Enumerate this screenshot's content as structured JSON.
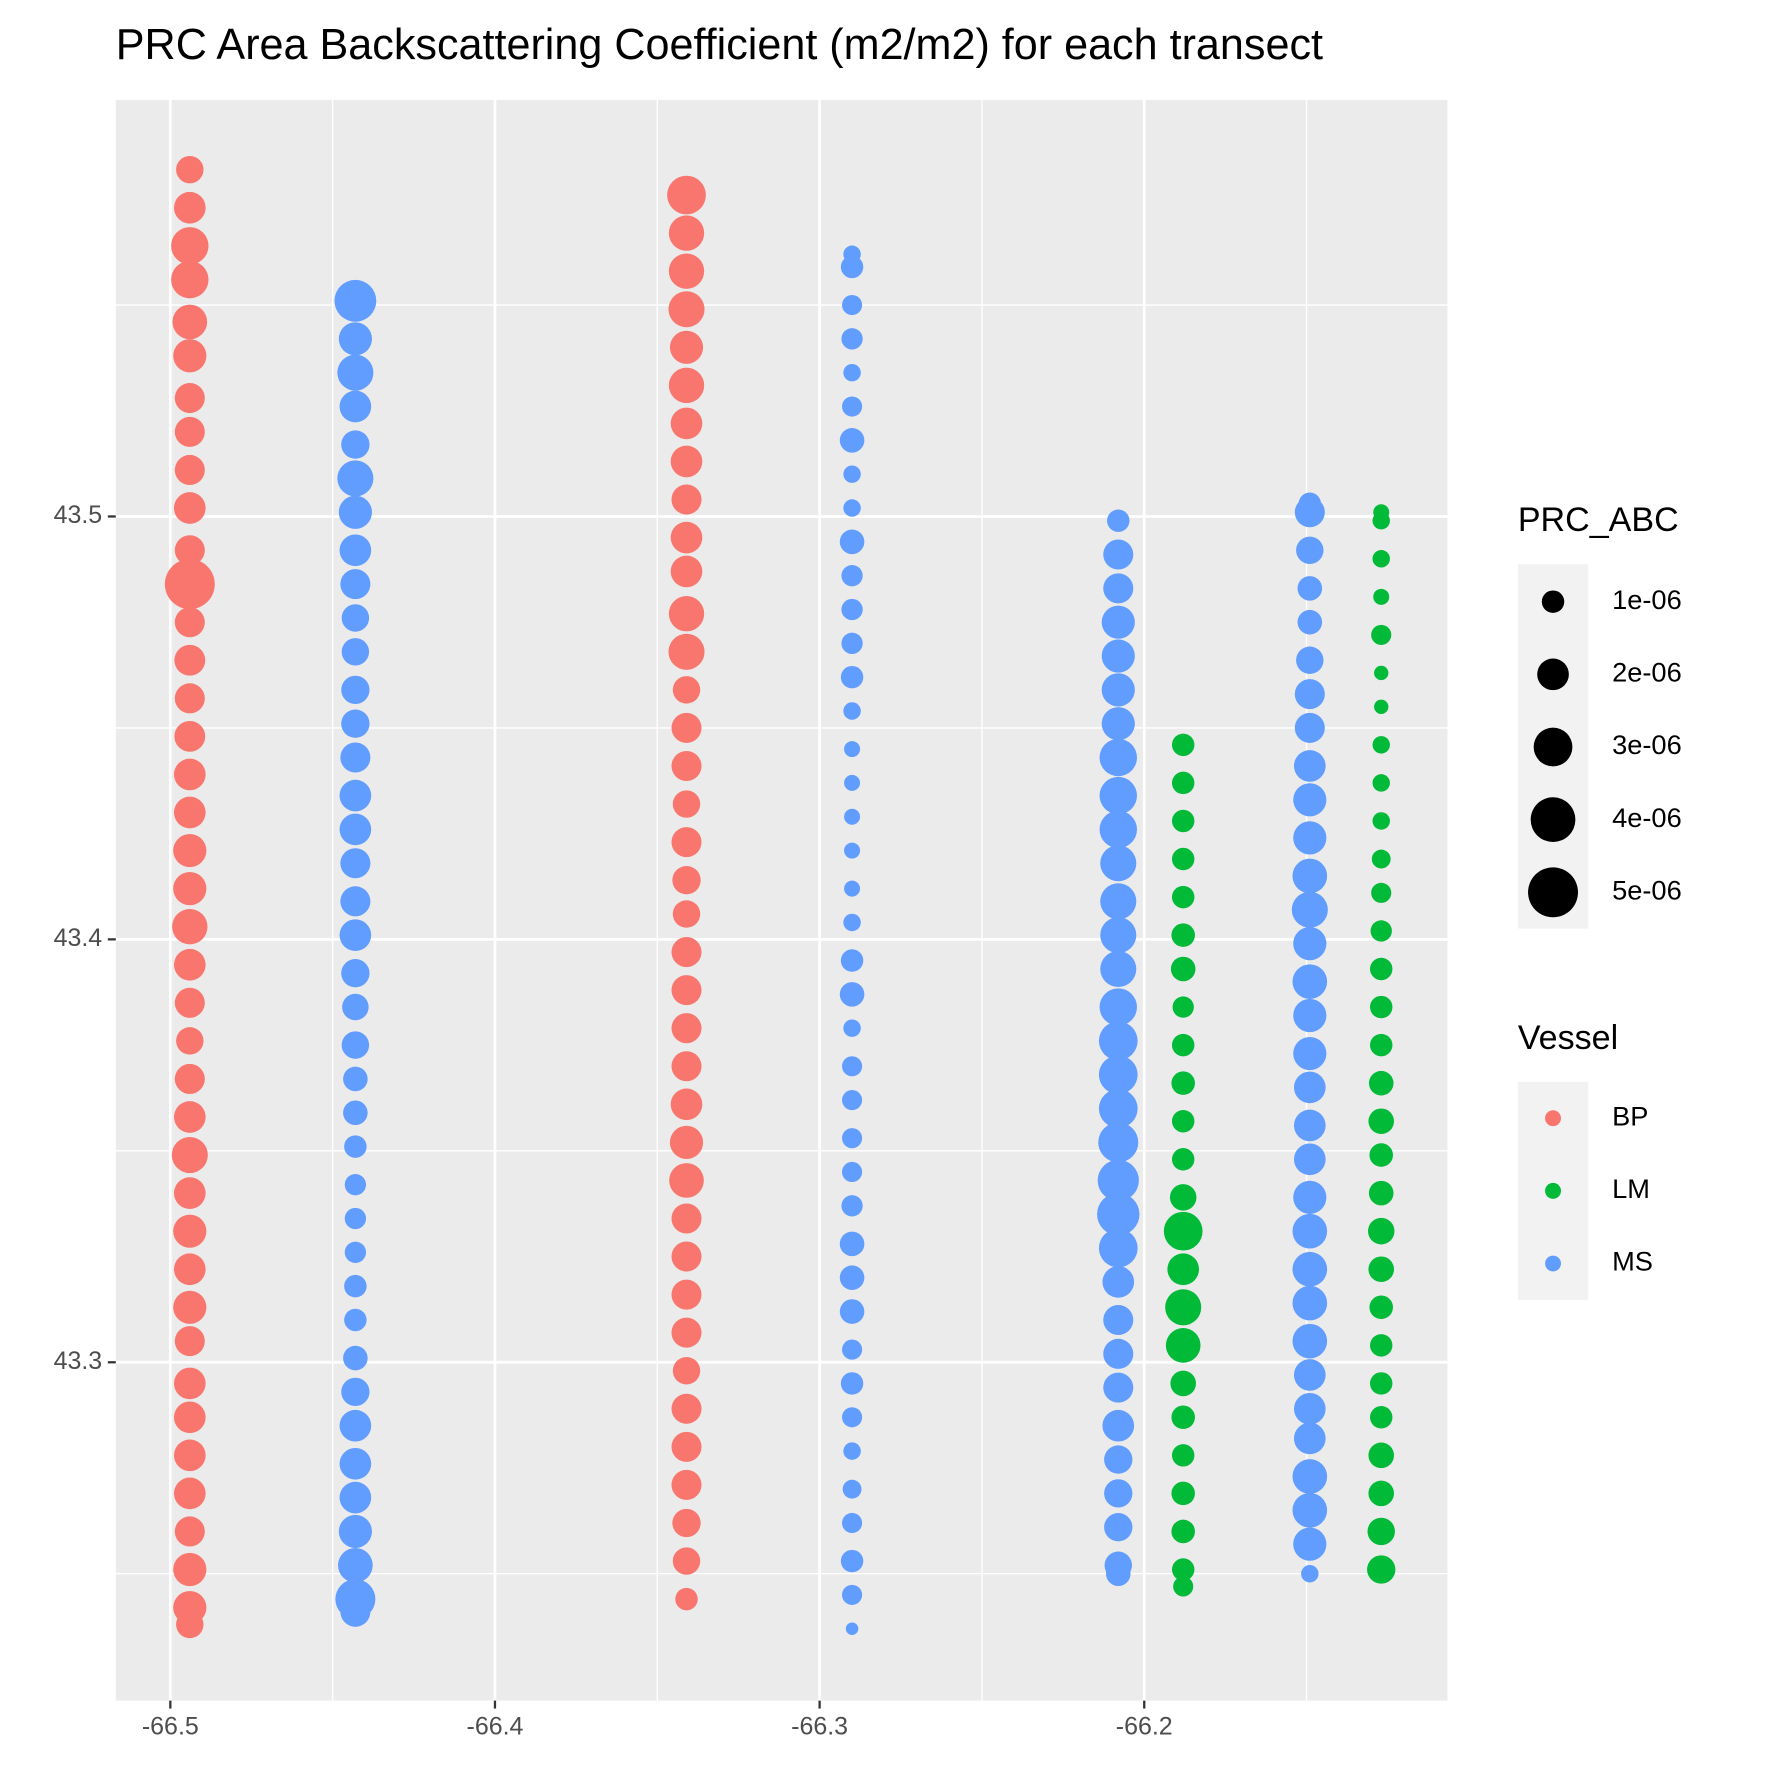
{
  "chart_data": {
    "type": "bubble",
    "title": "PRC Area Backscattering Coefficient (m2/m2) for each transect",
    "xlim": [
      -66.5168,
      -66.1066
    ],
    "ylim": [
      43.22,
      43.5985
    ],
    "xticks": [
      -66.5,
      -66.4,
      -66.3,
      -66.2
    ],
    "yticks": [
      43.3,
      43.4,
      43.5
    ],
    "grid": true,
    "size_legend": {
      "title": "PRC_ABC",
      "ticks": [
        {
          "value": 1e-06,
          "label": "1e-06"
        },
        {
          "value": 2e-06,
          "label": "2e-06"
        },
        {
          "value": 3e-06,
          "label": "3e-06"
        },
        {
          "value": 4e-06,
          "label": "4e-06"
        },
        {
          "value": 5e-06,
          "label": "5e-06"
        }
      ]
    },
    "color_legend_title": "Vessel",
    "series": [
      {
        "name": "BP",
        "color": "#F8766D",
        "x": [
          -66.494,
          -66.494,
          -66.494,
          -66.494,
          -66.494,
          -66.494,
          -66.494,
          -66.494,
          -66.494,
          -66.494,
          -66.494,
          -66.494,
          -66.494,
          -66.494,
          -66.494,
          -66.494,
          -66.494,
          -66.494,
          -66.494,
          -66.494,
          -66.494,
          -66.494,
          -66.494,
          -66.494,
          -66.494,
          -66.494,
          -66.494,
          -66.494,
          -66.494,
          -66.494,
          -66.494,
          -66.494,
          -66.494,
          -66.494,
          -66.494,
          -66.494,
          -66.494,
          -66.494,
          -66.494,
          -66.494,
          -66.341,
          -66.341,
          -66.341,
          -66.341,
          -66.341,
          -66.341,
          -66.341,
          -66.341,
          -66.341,
          -66.341,
          -66.341,
          -66.341,
          -66.341,
          -66.341,
          -66.341,
          -66.341,
          -66.341,
          -66.341,
          -66.341,
          -66.341,
          -66.341,
          -66.341,
          -66.341,
          -66.341,
          -66.341,
          -66.341,
          -66.341,
          -66.341,
          -66.341,
          -66.341,
          -66.341,
          -66.341,
          -66.341,
          -66.341,
          -66.341,
          -66.341,
          -66.341,
          -66.341
        ],
        "values": [
          43.582,
          43.573,
          43.564,
          43.556,
          43.546,
          43.538,
          43.528,
          43.52,
          43.511,
          43.502,
          43.492,
          43.484,
          43.475,
          43.466,
          43.457,
          43.448,
          43.439,
          43.43,
          43.421,
          43.412,
          43.403,
          43.394,
          43.385,
          43.376,
          43.367,
          43.358,
          43.349,
          43.34,
          43.331,
          43.322,
          43.313,
          43.305,
          43.295,
          43.287,
          43.278,
          43.269,
          43.26,
          43.251,
          43.242,
          43.238,
          43.576,
          43.567,
          43.558,
          43.549,
          43.54,
          43.531,
          43.522,
          43.513,
          43.504,
          43.495,
          43.487,
          43.477,
          43.468,
          43.459,
          43.45,
          43.441,
          43.432,
          43.423,
          43.414,
          43.406,
          43.397,
          43.388,
          43.379,
          43.37,
          43.361,
          43.352,
          43.343,
          43.334,
          43.325,
          43.316,
          43.307,
          43.298,
          43.289,
          43.28,
          43.271,
          43.262,
          43.253,
          43.244
        ],
        "sizes": [
          1.5e-06,
          2e-06,
          2.8e-06,
          2.8e-06,
          2.4e-06,
          2.2e-06,
          1.8e-06,
          1.8e-06,
          1.8e-06,
          2e-06,
          1.8e-06,
          5e-06,
          1.8e-06,
          1.9e-06,
          1.8e-06,
          1.9e-06,
          2e-06,
          2e-06,
          2.2e-06,
          2.2e-06,
          2.5e-06,
          2e-06,
          1.8e-06,
          1.5e-06,
          1.8e-06,
          2e-06,
          2.6e-06,
          2e-06,
          2.2e-06,
          2e-06,
          2.2e-06,
          1.8e-06,
          2e-06,
          2e-06,
          2e-06,
          2e-06,
          1.8e-06,
          2.2e-06,
          2.2e-06,
          1.5e-06,
          3e-06,
          2.5e-06,
          2.5e-06,
          2.6e-06,
          2.2e-06,
          2.5e-06,
          2e-06,
          2e-06,
          1.8e-06,
          2e-06,
          2e-06,
          2.5e-06,
          2.6e-06,
          1.5e-06,
          1.8e-06,
          1.8e-06,
          1.5e-06,
          1.8e-06,
          1.6e-06,
          1.5e-06,
          1.8e-06,
          1.8e-06,
          1.8e-06,
          1.8e-06,
          2e-06,
          2.2e-06,
          2.4e-06,
          1.8e-06,
          1.8e-06,
          1.8e-06,
          1.8e-06,
          1.5e-06,
          1.8e-06,
          1.8e-06,
          1.8e-06,
          1.6e-06,
          1.5e-06,
          1e-06
        ]
      },
      {
        "name": "LM",
        "color": "#00BA38",
        "x": [
          -66.188,
          -66.188,
          -66.188,
          -66.188,
          -66.188,
          -66.188,
          -66.188,
          -66.188,
          -66.188,
          -66.188,
          -66.188,
          -66.188,
          -66.188,
          -66.188,
          -66.188,
          -66.188,
          -66.188,
          -66.188,
          -66.188,
          -66.188,
          -66.188,
          -66.188,
          -66.188,
          -66.188,
          -66.127,
          -66.127,
          -66.127,
          -66.127,
          -66.127,
          -66.127,
          -66.127,
          -66.127,
          -66.127,
          -66.127,
          -66.127,
          -66.127,
          -66.127,
          -66.127,
          -66.127,
          -66.127,
          -66.127,
          -66.127,
          -66.127,
          -66.127,
          -66.127,
          -66.127,
          -66.127,
          -66.127,
          -66.127,
          -66.127,
          -66.127,
          -66.127,
          -66.127,
          -66.127
        ],
        "values": [
          43.446,
          43.437,
          43.428,
          43.419,
          43.41,
          43.401,
          43.393,
          43.384,
          43.375,
          43.366,
          43.357,
          43.348,
          43.339,
          43.331,
          43.322,
          43.313,
          43.304,
          43.295,
          43.287,
          43.278,
          43.269,
          43.26,
          43.251,
          43.247,
          43.501,
          43.499,
          43.49,
          43.481,
          43.472,
          43.463,
          43.455,
          43.446,
          43.437,
          43.428,
          43.419,
          43.411,
          43.402,
          43.393,
          43.384,
          43.375,
          43.366,
          43.357,
          43.349,
          43.34,
          43.331,
          43.322,
          43.313,
          43.304,
          43.295,
          43.287,
          43.278,
          43.269,
          43.26,
          43.251
        ],
        "sizes": [
          1e-06,
          1e-06,
          1e-06,
          1e-06,
          1e-06,
          1.1e-06,
          1.2e-06,
          9e-07,
          1e-06,
          1.1e-06,
          1e-06,
          1e-06,
          1.4e-06,
          3e-06,
          2e-06,
          2.6e-06,
          2.4e-06,
          1.3e-06,
          1.1e-06,
          1e-06,
          1.1e-06,
          1.1e-06,
          1e-06,
          8e-07,
          5e-07,
          6e-07,
          6e-07,
          5e-07,
          8e-07,
          4e-07,
          4e-07,
          6e-07,
          6e-07,
          6e-07,
          7e-07,
          8e-07,
          9e-07,
          1e-06,
          1e-06,
          1e-06,
          1.2e-06,
          1.3e-06,
          1.1e-06,
          1.2e-06,
          1.4e-06,
          1.3e-06,
          1.1e-06,
          1e-06,
          1e-06,
          1e-06,
          1.3e-06,
          1.3e-06,
          1.5e-06,
          1.6e-06
        ]
      },
      {
        "name": "MS",
        "color": "#619CFF",
        "x": [
          -66.443,
          -66.443,
          -66.443,
          -66.443,
          -66.443,
          -66.443,
          -66.443,
          -66.443,
          -66.443,
          -66.443,
          -66.443,
          -66.443,
          -66.443,
          -66.443,
          -66.443,
          -66.443,
          -66.443,
          -66.443,
          -66.443,
          -66.443,
          -66.443,
          -66.443,
          -66.443,
          -66.443,
          -66.443,
          -66.443,
          -66.443,
          -66.443,
          -66.443,
          -66.443,
          -66.443,
          -66.443,
          -66.443,
          -66.443,
          -66.443,
          -66.443,
          -66.443,
          -66.443,
          -66.443,
          -66.29,
          -66.29,
          -66.29,
          -66.29,
          -66.29,
          -66.29,
          -66.29,
          -66.29,
          -66.29,
          -66.29,
          -66.29,
          -66.29,
          -66.29,
          -66.29,
          -66.29,
          -66.29,
          -66.29,
          -66.29,
          -66.29,
          -66.29,
          -66.29,
          -66.29,
          -66.29,
          -66.29,
          -66.29,
          -66.29,
          -66.29,
          -66.29,
          -66.29,
          -66.29,
          -66.29,
          -66.29,
          -66.29,
          -66.29,
          -66.29,
          -66.29,
          -66.29,
          -66.29,
          -66.29,
          -66.29,
          -66.29,
          -66.208,
          -66.208,
          -66.208,
          -66.208,
          -66.208,
          -66.208,
          -66.208,
          -66.208,
          -66.208,
          -66.208,
          -66.208,
          -66.208,
          -66.208,
          -66.208,
          -66.208,
          -66.208,
          -66.208,
          -66.208,
          -66.208,
          -66.208,
          -66.208,
          -66.208,
          -66.208,
          -66.208,
          -66.208,
          -66.208,
          -66.208,
          -66.208,
          -66.208,
          -66.208,
          -66.208,
          -66.208,
          -66.149,
          -66.149,
          -66.149,
          -66.149,
          -66.149,
          -66.149,
          -66.149,
          -66.149,
          -66.149,
          -66.149,
          -66.149,
          -66.149,
          -66.149,
          -66.149,
          -66.149,
          -66.149,
          -66.149,
          -66.149,
          -66.149,
          -66.149,
          -66.149,
          -66.149,
          -66.149,
          -66.149,
          -66.149,
          -66.149,
          -66.149,
          -66.149,
          -66.149,
          -66.149,
          -66.149,
          -66.149
        ],
        "values": [
          43.551,
          43.542,
          43.534,
          43.526,
          43.517,
          43.509,
          43.501,
          43.492,
          43.484,
          43.476,
          43.468,
          43.459,
          43.451,
          43.443,
          43.434,
          43.426,
          43.418,
          43.409,
          43.401,
          43.392,
          43.384,
          43.375,
          43.367,
          43.359,
          43.351,
          43.342,
          43.334,
          43.326,
          43.318,
          43.31,
          43.301,
          43.293,
          43.285,
          43.276,
          43.268,
          43.26,
          43.252,
          43.244,
          43.241,
          43.562,
          43.559,
          43.55,
          43.542,
          43.534,
          43.526,
          43.518,
          43.51,
          43.502,
          43.494,
          43.486,
          43.478,
          43.47,
          43.462,
          43.454,
          43.445,
          43.437,
          43.429,
          43.421,
          43.412,
          43.404,
          43.395,
          43.387,
          43.379,
          43.37,
          43.362,
          43.353,
          43.345,
          43.337,
          43.328,
          43.32,
          43.312,
          43.303,
          43.295,
          43.287,
          43.279,
          43.27,
          43.262,
          43.253,
          43.245,
          43.237,
          43.499,
          43.491,
          43.483,
          43.475,
          43.467,
          43.459,
          43.451,
          43.443,
          43.434,
          43.426,
          43.418,
          43.409,
          43.401,
          43.393,
          43.384,
          43.376,
          43.368,
          43.36,
          43.352,
          43.343,
          43.335,
          43.327,
          43.319,
          43.31,
          43.302,
          43.294,
          43.285,
          43.277,
          43.269,
          43.261,
          43.252,
          43.25,
          43.503,
          43.501,
          43.492,
          43.483,
          43.475,
          43.466,
          43.458,
          43.45,
          43.441,
          43.433,
          43.424,
          43.415,
          43.407,
          43.399,
          43.39,
          43.382,
          43.373,
          43.365,
          43.356,
          43.348,
          43.339,
          43.331,
          43.322,
          43.314,
          43.305,
          43.297,
          43.289,
          43.282,
          43.273,
          43.265,
          43.257,
          43.25
        ],
        "sizes": [
          3.5e-06,
          2.2e-06,
          2.6e-06,
          2e-06,
          1.6e-06,
          2.6e-06,
          2.2e-06,
          2e-06,
          1.8e-06,
          1.5e-06,
          1.5e-06,
          1.6e-06,
          1.6e-06,
          1.8e-06,
          2e-06,
          2e-06,
          1.8e-06,
          1.8e-06,
          2e-06,
          1.6e-06,
          1.4e-06,
          1.5e-06,
          1.2e-06,
          1.2e-06,
          1e-06,
          9e-07,
          9e-07,
          9e-07,
          1e-06,
          1e-06,
          1.2e-06,
          1.6e-06,
          2e-06,
          2e-06,
          2e-06,
          2.2e-06,
          2.4e-06,
          3.2e-06,
          1.8e-06,
          6e-07,
          1e-06,
          8e-07,
          9e-07,
          6e-07,
          8e-07,
          1.2e-06,
          6e-07,
          6e-07,
          1.2e-06,
          9e-07,
          9e-07,
          9e-07,
          1e-06,
          6e-07,
          5e-07,
          5e-07,
          5e-07,
          5e-07,
          5e-07,
          6e-07,
          1e-06,
          1.2e-06,
          6e-07,
          8e-07,
          8e-07,
          8e-07,
          8e-07,
          9e-07,
          1.2e-06,
          1.2e-06,
          1.2e-06,
          8e-07,
          1e-06,
          8e-07,
          6e-07,
          7e-07,
          8e-07,
          1e-06,
          8e-07,
          3e-07,
          1e-06,
          1.8e-06,
          1.8e-06,
          2.2e-06,
          2.2e-06,
          2.2e-06,
          2.2e-06,
          2.8e-06,
          2.8e-06,
          2.8e-06,
          2.6e-06,
          2.6e-06,
          2.6e-06,
          2.6e-06,
          2.8e-06,
          3e-06,
          3e-06,
          3e-06,
          3.2e-06,
          3.4e-06,
          3.6e-06,
          3e-06,
          2e-06,
          1.8e-06,
          1.8e-06,
          1.8e-06,
          2e-06,
          1.6e-06,
          1.6e-06,
          1.6e-06,
          1.5e-06,
          1.2e-06,
          1e-06,
          1.8e-06,
          1.5e-06,
          1.2e-06,
          1.2e-06,
          1.5e-06,
          1.8e-06,
          1.8e-06,
          2e-06,
          2.2e-06,
          2.2e-06,
          2.4e-06,
          2.6e-06,
          2.2e-06,
          2.4e-06,
          2.2e-06,
          2.2e-06,
          2e-06,
          2e-06,
          2e-06,
          2.2e-06,
          2.4e-06,
          2.4e-06,
          2.4e-06,
          2.4e-06,
          2e-06,
          2e-06,
          2e-06,
          2.4e-06,
          2.4e-06,
          2.2e-06,
          6e-07
        ]
      }
    ]
  }
}
